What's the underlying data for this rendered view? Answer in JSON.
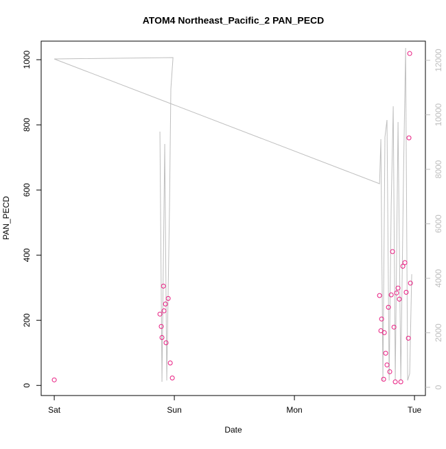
{
  "chart_data": {
    "type": "scatter",
    "title": "ATOM4 Northeast_Pacific_2 PAN_PECD",
    "xlabel": "Date",
    "ylabel": "PAN_PECD",
    "xlim": [
      -0.109,
      3.091
    ],
    "xticks": [
      {
        "value": 0,
        "label": "Sat"
      },
      {
        "value": 1,
        "label": "Sun"
      },
      {
        "value": 2,
        "label": "Mon"
      },
      {
        "value": 3,
        "label": "Tue"
      }
    ],
    "ylim": [
      -31,
      1057
    ],
    "yticks": [
      0,
      200,
      400,
      600,
      800,
      1000
    ],
    "y2lim": [
      -302,
      12704
    ],
    "y2ticks": [
      0,
      2000,
      4000,
      6000,
      8000,
      10000,
      12000
    ],
    "y2color": "#bebebe",
    "series": [
      {
        "type": "scatter",
        "color": "#e8197f",
        "x": [
          0,
          0.88,
          0.891,
          0.897,
          0.909,
          0.914,
          0.926,
          0.931,
          0.949,
          0.966,
          0.983,
          2.709,
          2.72,
          2.726,
          2.743,
          2.749,
          2.76,
          2.771,
          2.783,
          2.794,
          2.806,
          2.817,
          2.829,
          2.84,
          2.851,
          2.863,
          2.874,
          2.886,
          2.903,
          2.92,
          2.931,
          2.949,
          2.954,
          2.96,
          2.966
        ],
        "values": [
          17,
          219,
          181,
          147,
          305,
          229,
          250,
          131,
          267,
          69,
          23,
          276,
          168,
          204,
          19,
          162,
          99,
          63,
          240,
          42,
          278,
          411,
          179,
          11,
          284,
          299,
          265,
          11,
          366,
          377,
          286,
          145,
          760,
          1019,
          314
        ]
      },
      {
        "type": "line",
        "color": "#bebebe",
        "axis": "y2",
        "x": [
          0.88,
          0.897,
          0.92,
          0.937,
          0.96,
          0.971,
          0.989,
          0,
          2.709,
          2.72,
          2.737,
          2.754,
          2.771,
          2.789,
          2.806,
          2.823,
          2.84,
          2.863,
          2.886,
          2.909,
          2.926,
          2.943,
          2.96,
          2.977
        ],
        "values": [
          9384,
          201,
          8931,
          252,
          6667,
          10943,
          12101,
          12050,
          7472,
          9107,
          252,
          9182,
          9811,
          252,
          6667,
          10314,
          252,
          9736,
          252,
          7925,
          12453,
          252,
          503,
          4151
        ]
      }
    ]
  }
}
